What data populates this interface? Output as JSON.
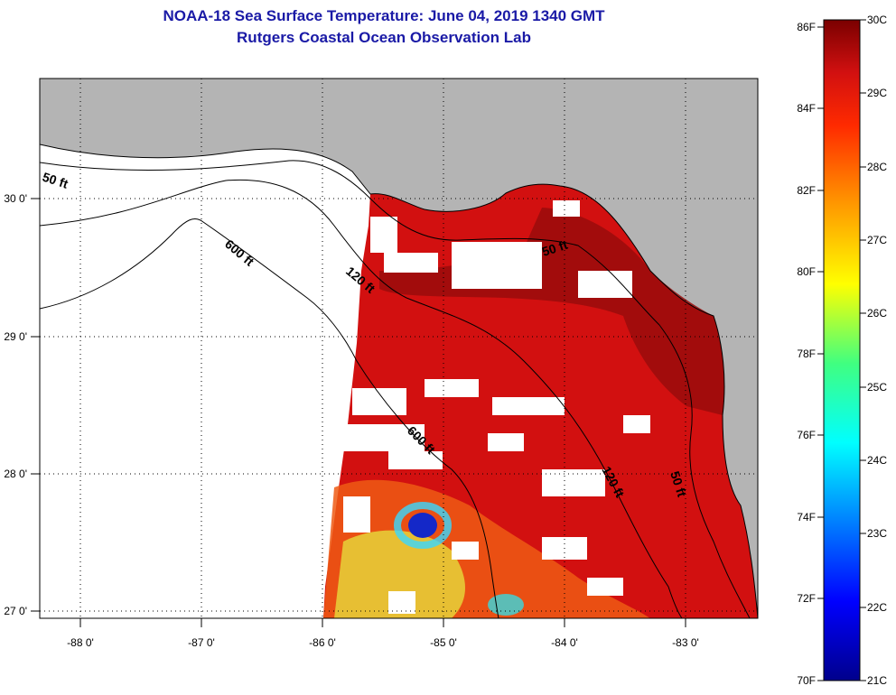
{
  "title": {
    "line1": "NOAA-18 Sea Surface Temperature:  June 04, 2019 1340 GMT",
    "line2": "Rutgers Coastal Ocean Observation Lab"
  },
  "map": {
    "lon_ticks": [
      "-88 0'",
      "-87 0'",
      "-86 0'",
      "-85 0'",
      "-84 0'",
      "-83 0'"
    ],
    "lat_ticks": [
      "30 0'",
      "29 0'",
      "28 0'",
      "27 0'"
    ],
    "contours": [
      "50 ft",
      "600 ft",
      "120 ft",
      "50 ft",
      "600 ft",
      "120 ft",
      "50 ft"
    ],
    "colors": {
      "land": "#b4b4b4",
      "ocean_warm": "#d21010",
      "ocean_hot": "#8c0a0a",
      "cloud": "#ffffff"
    }
  },
  "colorbar": {
    "fahrenheit": [
      "86F",
      "84F",
      "82F",
      "80F",
      "78F",
      "76F",
      "74F",
      "72F",
      "70F"
    ],
    "celsius": [
      "30C",
      "29C",
      "28C",
      "27C",
      "26C",
      "25C",
      "24C",
      "23C",
      "22C",
      "21C"
    ]
  }
}
